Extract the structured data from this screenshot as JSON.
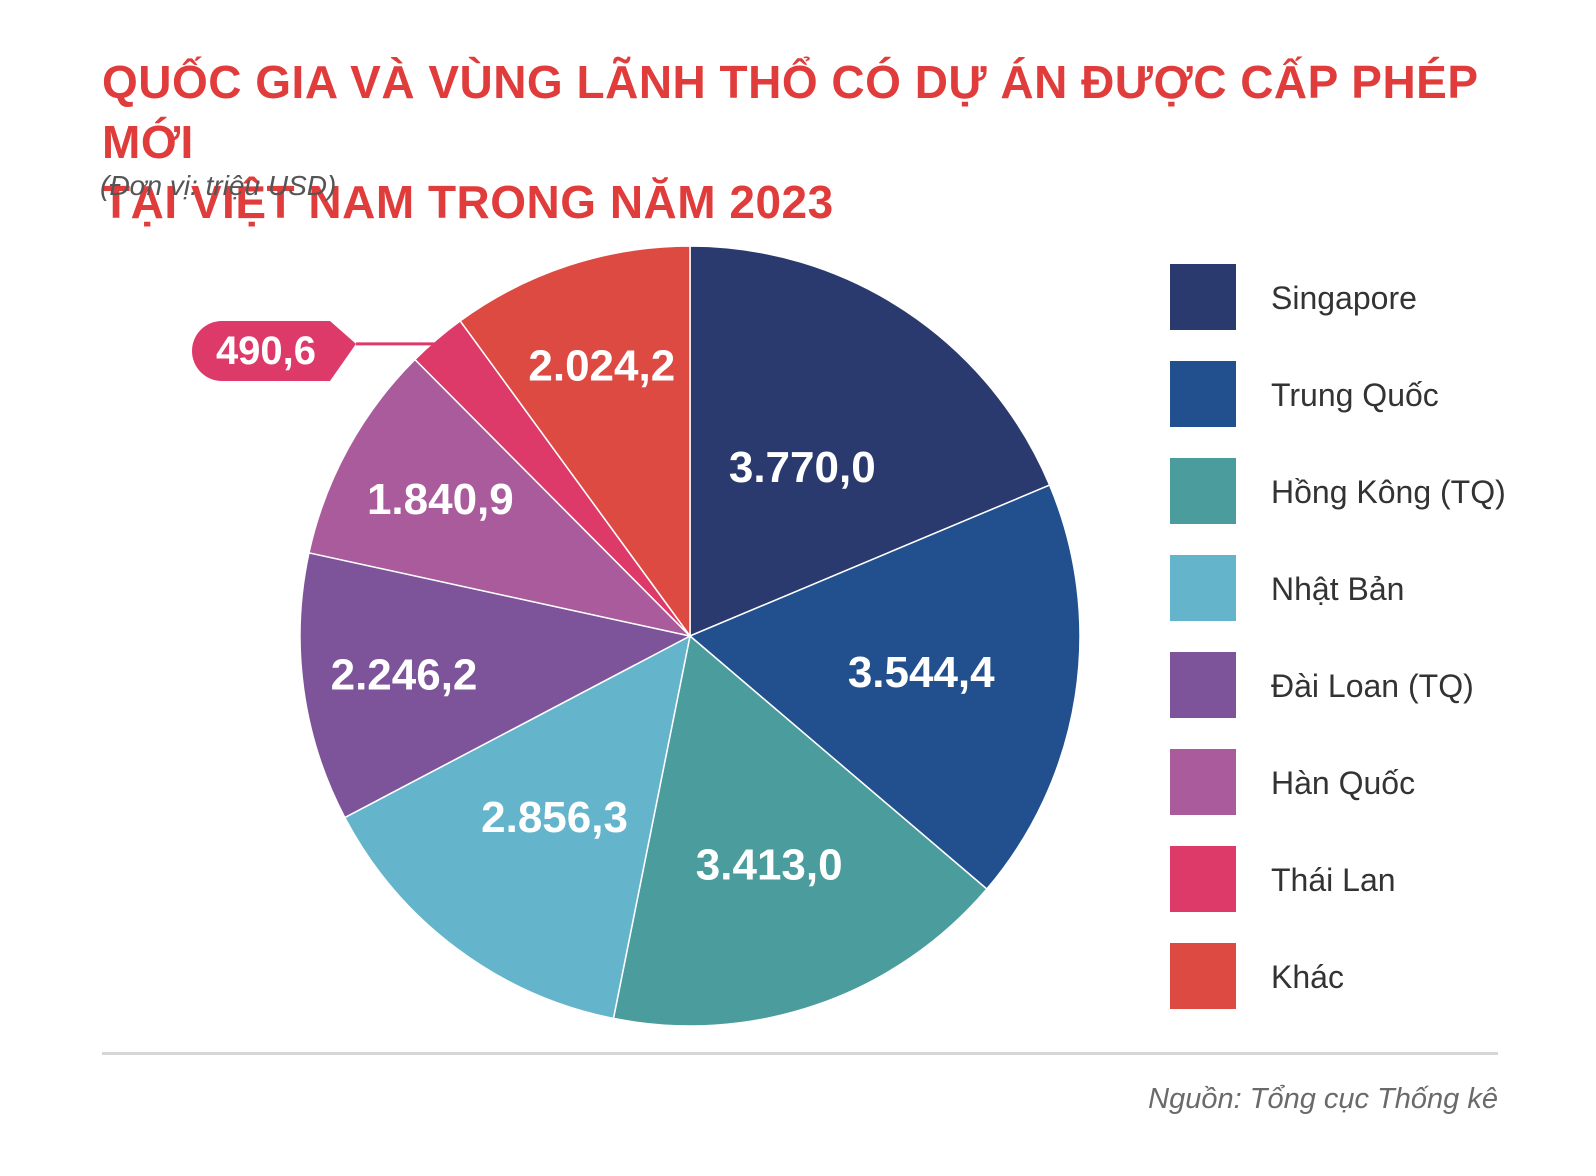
{
  "header": {
    "title_line1": "QUỐC GIA VÀ VÙNG LÃNH THỔ CÓ DỰ ÁN ĐƯỢC CẤP PHÉP MỚI",
    "title_line2": "TẠI VIỆT NAM TRONG NĂM 2023",
    "unit": "(Đơn vị: triệu USD)"
  },
  "footer": {
    "source": "Nguồn: Tổng cục Thống kê"
  },
  "chart_data": {
    "type": "pie",
    "title": "QUỐC GIA VÀ VÙNG LÃNH THỔ CÓ DỰ ÁN ĐƯỢC CẤP PHÉP MỚI TẠI VIỆT NAM TRONG NĂM 2023",
    "unit": "(Đơn vị: triệu USD)",
    "legend_position": "right",
    "start_angle": "12 o'clock",
    "direction": "clockwise",
    "slices": [
      {
        "name": "Singapore",
        "value": 3770.0,
        "label": "3.770,0",
        "color": "#2b3a6e"
      },
      {
        "name": "Trung Quốc",
        "value": 3544.4,
        "label": "3.544,4",
        "color": "#22508e"
      },
      {
        "name": "Hồng Kông (TQ)",
        "value": 3413.0,
        "label": "3.413,0",
        "color": "#4b9c9d"
      },
      {
        "name": "Nhật Bản",
        "value": 2856.3,
        "label": "2.856,3",
        "color": "#64b4cc"
      },
      {
        "name": "Đài Loan (TQ)",
        "value": 2246.2,
        "label": "2.246,2",
        "color": "#7d5399"
      },
      {
        "name": "Hàn Quốc",
        "value": 1840.9,
        "label": "1.840,9",
        "color": "#a95b9c"
      },
      {
        "name": "Thái Lan",
        "value": 490.6,
        "label": "490,6",
        "color": "#dd3a6a",
        "callout": true
      },
      {
        "name": "Khác",
        "value": 2024.2,
        "label": "2.024,2",
        "color": "#dd4a42"
      }
    ]
  }
}
